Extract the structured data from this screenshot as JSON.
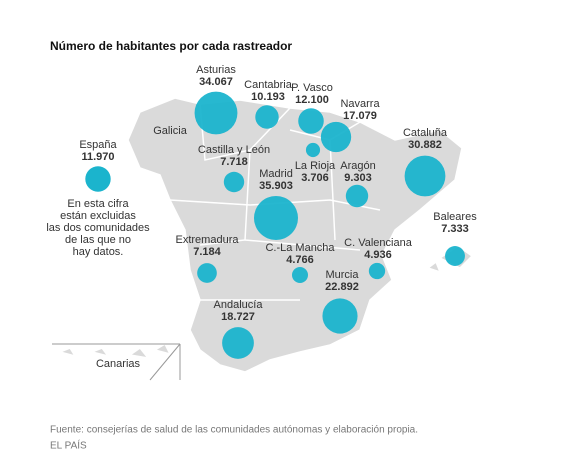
{
  "title": "Número de habitantes por cada rastreador",
  "bubble_color": "#1bb4cd",
  "spain": {
    "name": "España",
    "value": 11970,
    "value_label": "11.970",
    "note": [
      "En esta cifra",
      "están excluidas",
      "las dos comunidades",
      "de las que no",
      "hay datos."
    ]
  },
  "regions": [
    {
      "name": "Asturias",
      "value": 34067,
      "value_label": "34.067"
    },
    {
      "name": "Cantabria",
      "value": 10193,
      "value_label": "10.193"
    },
    {
      "name": "P. Vasco",
      "value": 12100,
      "value_label": "12.100"
    },
    {
      "name": "Navarra",
      "value": 17079,
      "value_label": "17.079"
    },
    {
      "name": "Castilla y León",
      "value": 7718,
      "value_label": "7.718"
    },
    {
      "name": "La Rioja",
      "value": 3706,
      "value_label": "3.706"
    },
    {
      "name": "Aragón",
      "value": 9303,
      "value_label": "9.303"
    },
    {
      "name": "Cataluña",
      "value": 30882,
      "value_label": "30.882"
    },
    {
      "name": "Madrid",
      "value": 35903,
      "value_label": "35.903"
    },
    {
      "name": "Baleares",
      "value": 7333,
      "value_label": "7.333"
    },
    {
      "name": "Extremadura",
      "value": 7184,
      "value_label": "7.184"
    },
    {
      "name": "C.-La Mancha",
      "value": 4766,
      "value_label": "4.766"
    },
    {
      "name": "C. Valenciana",
      "value": 4936,
      "value_label": "4.936"
    },
    {
      "name": "Murcia",
      "value": 22892,
      "value_label": "22.892"
    },
    {
      "name": "Andalucía",
      "value": 18727,
      "value_label": "18.727"
    }
  ],
  "unlabeled_regions": [
    "Galicia",
    "Canarias"
  ],
  "source": "Fuente: consejerías de salud de las comunidades autónomas y elaboración propia.",
  "credit": "EL PAÍS"
}
